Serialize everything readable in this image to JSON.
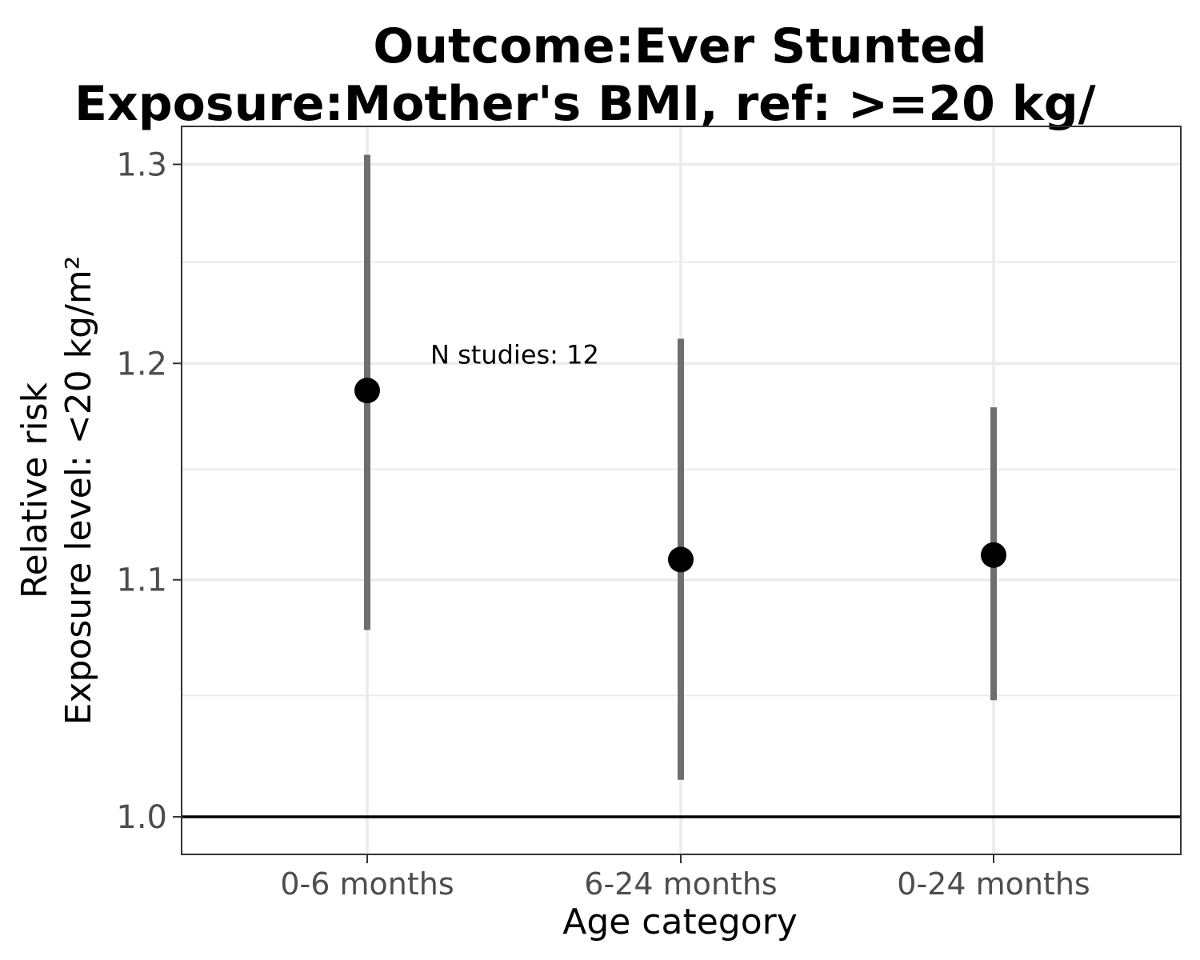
{
  "chart_data": {
    "type": "scatter",
    "title_lines": [
      "Outcome:Ever Stunted",
      "Exposure:Mother's BMI, ref: >=20 kg/"
    ],
    "xlabel": "Age category",
    "ylabel_lines": [
      "Relative risk",
      "Exposure level: <20 kg/m²"
    ],
    "categories": [
      "0-6 months",
      "6-24 months",
      "0-24 months"
    ],
    "points": [
      {
        "category": "0-6 months",
        "estimate": 1.187,
        "ci_lower": 1.078,
        "ci_upper": 1.305
      },
      {
        "category": "6-24 months",
        "estimate": 1.109,
        "ci_lower": 1.015,
        "ci_upper": 1.212
      },
      {
        "category": "0-24 months",
        "estimate": 1.111,
        "ci_lower": 1.048,
        "ci_upper": 1.179
      }
    ],
    "y_scale": "log",
    "ylim": [
      0.985,
      1.32
    ],
    "y_ticks": [
      1.0,
      1.1,
      1.2,
      1.3
    ],
    "y_tick_labels": [
      "1.0",
      "1.1",
      "1.2",
      "1.3"
    ],
    "y_minor_ticks": [
      1.05,
      1.15,
      1.25
    ],
    "reference_line": 1.0,
    "annotation": {
      "text": "N studies: 12",
      "category": "0-6 months",
      "y": 1.2
    },
    "grid": true,
    "colors": {
      "point": "#000000",
      "ci": "#6e6e6e",
      "grid": "#ebebeb",
      "reference": "#000000",
      "panel_border": "#333333"
    }
  }
}
